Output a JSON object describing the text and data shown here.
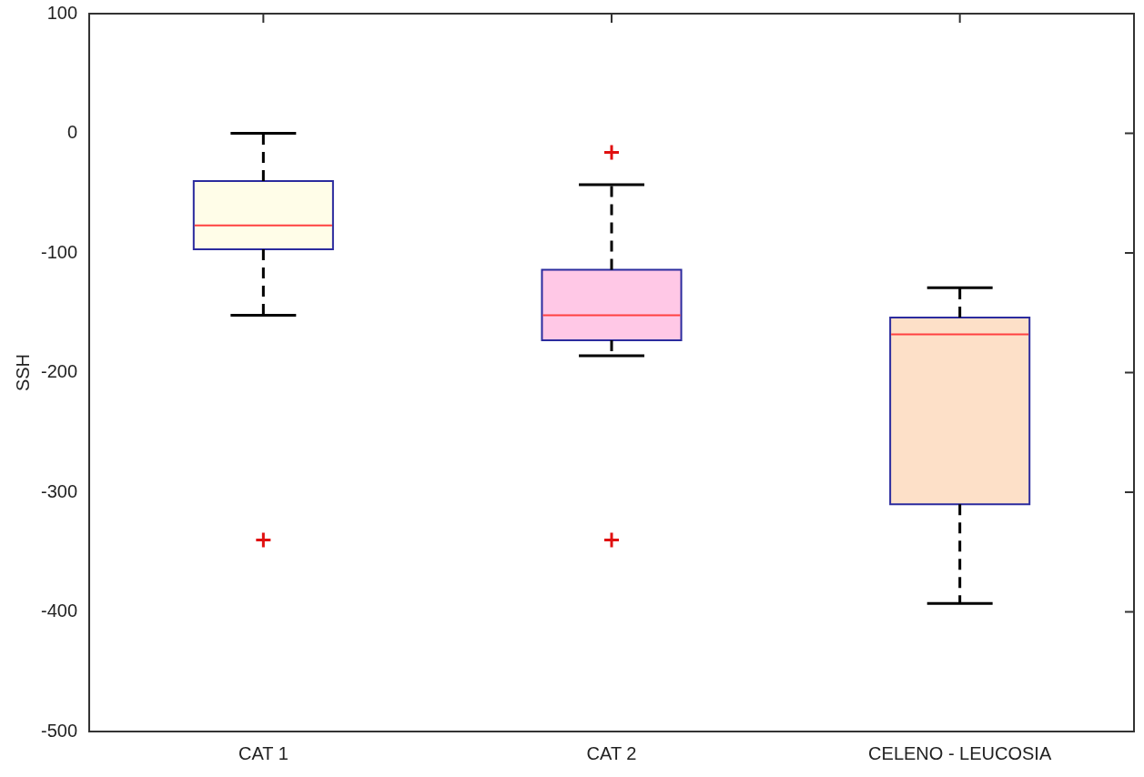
{
  "chart_data": {
    "type": "box",
    "ylabel": "SSH",
    "categories": [
      "CAT 1",
      "CAT 2",
      "CELENO - LEUCOSIA"
    ],
    "boxes": [
      {
        "low": -152,
        "q1": -97,
        "median": -77,
        "q3": -40,
        "high": 0,
        "outliers": [
          -340
        ]
      },
      {
        "low": -186,
        "q1": -173,
        "median": -152,
        "q3": -114,
        "high": -43,
        "outliers": [
          -16,
          -340
        ]
      },
      {
        "low": -393,
        "q1": -310,
        "median": -168,
        "q3": -154,
        "high": -129
      }
    ],
    "colors": [
      "#fffde8",
      "#ffc8e6",
      "#fde0c8"
    ],
    "ylim": [
      -500,
      100
    ],
    "yticks": [
      -500,
      -400,
      -300,
      -200,
      -100,
      0,
      100
    ],
    "grid": false,
    "legend": false,
    "marker": "cross"
  }
}
